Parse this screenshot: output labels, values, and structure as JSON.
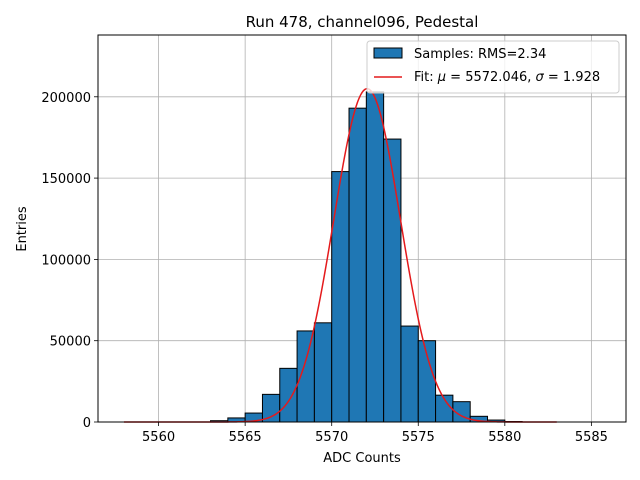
{
  "chart_data": {
    "type": "bar",
    "title": "Run 478, channel096, Pedestal",
    "xlabel": "ADC Counts",
    "ylabel": "Entries",
    "xlim": [
      5556.5,
      5587
    ],
    "ylim": [
      0,
      238000
    ],
    "xticks": [
      5560,
      5565,
      5570,
      5575,
      5580,
      5585
    ],
    "yticks": [
      0,
      50000,
      100000,
      150000,
      200000
    ],
    "grid": true,
    "legend_position": "top-right",
    "bar_color": "#1f77b4",
    "fit_color": "#e41a1c",
    "histogram": {
      "name": "Samples",
      "legend_label": "Samples: RMS=2.34",
      "bins": [
        {
          "left": 5563,
          "right": 5564,
          "value": 800
        },
        {
          "left": 5564,
          "right": 5565,
          "value": 2500
        },
        {
          "left": 5565,
          "right": 5566,
          "value": 5500
        },
        {
          "left": 5566,
          "right": 5567,
          "value": 17000
        },
        {
          "left": 5567,
          "right": 5568,
          "value": 33000
        },
        {
          "left": 5568,
          "right": 5569,
          "value": 56000
        },
        {
          "left": 5569,
          "right": 5570,
          "value": 61000
        },
        {
          "left": 5570,
          "right": 5571,
          "value": 154000
        },
        {
          "left": 5571,
          "right": 5572,
          "value": 193000
        },
        {
          "left": 5572,
          "right": 5573,
          "value": 203000
        },
        {
          "left": 5573,
          "right": 5574,
          "value": 174000
        },
        {
          "left": 5574,
          "right": 5575,
          "value": 59000
        },
        {
          "left": 5575,
          "right": 5576,
          "value": 50000
        },
        {
          "left": 5576,
          "right": 5577,
          "value": 16500
        },
        {
          "left": 5577,
          "right": 5578,
          "value": 12500
        },
        {
          "left": 5578,
          "right": 5579,
          "value": 3500
        },
        {
          "left": 5579,
          "right": 5580,
          "value": 1200
        },
        {
          "left": 5580,
          "right": 5581,
          "value": 300
        }
      ]
    },
    "fit": {
      "name": "Fit",
      "legend_prefix": "Fit: ",
      "mu_symbol": "μ",
      "sigma_symbol": "σ",
      "mu": 5572.046,
      "sigma": 1.928,
      "mu_text": " = 5572.046, ",
      "sigma_text": " = 1.928",
      "amplitude": 205000,
      "x_range": [
        5558,
        5583
      ]
    }
  }
}
